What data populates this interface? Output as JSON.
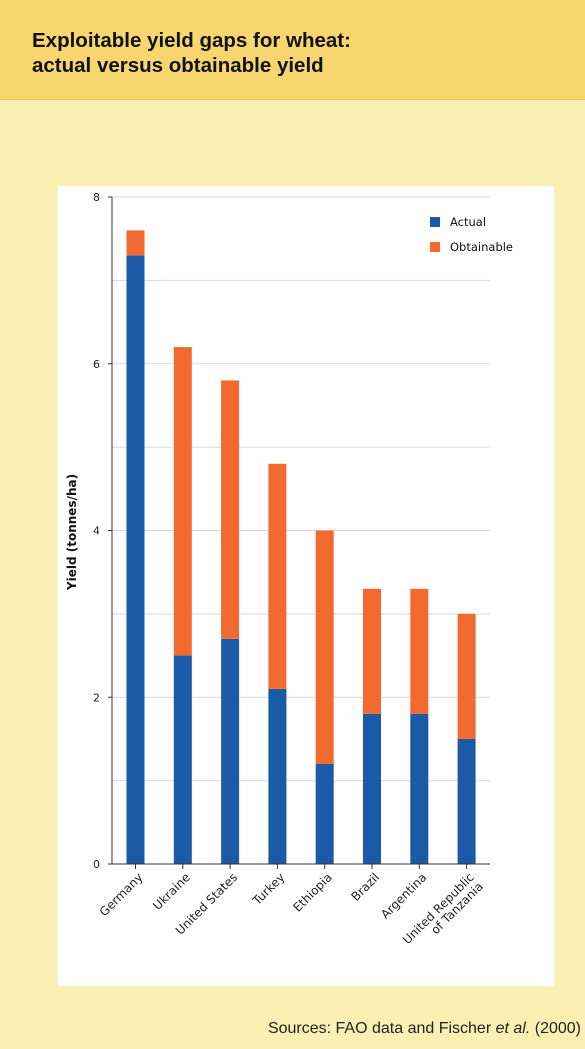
{
  "title_line1": "Exploitable yield gaps for wheat:",
  "title_line2": "actual versus obtainable yield",
  "sources": {
    "prefix": "Sources: FAO data and Fischer ",
    "etal": "et al.",
    "suffix": " (2000)"
  },
  "colors": {
    "actual": "#1b5aa6",
    "obtainable": "#f26a30",
    "grid": "#d9d9d9",
    "axis": "#333333"
  },
  "chart_data": {
    "type": "bar",
    "stacked": true,
    "title": "",
    "ylabel": "Yield (tonnes/ha)",
    "xlabel": "",
    "ylim": [
      0,
      8
    ],
    "yticks": [
      0,
      2,
      4,
      6,
      8
    ],
    "grid": true,
    "legend_position": "top-right",
    "categories": [
      "Germany",
      "Ukraine",
      "United States",
      "Turkey",
      "Ethiopia",
      "Brazil",
      "Argentina",
      [
        "United Republic",
        "of Tanzania"
      ]
    ],
    "series": [
      {
        "name": "Actual",
        "values": [
          7.3,
          2.5,
          2.7,
          2.1,
          1.2,
          1.8,
          1.8,
          1.5
        ]
      },
      {
        "name": "Obtainable",
        "values": [
          0.3,
          3.7,
          3.1,
          2.7,
          2.8,
          1.5,
          1.5,
          1.5
        ]
      }
    ],
    "obtainable_totals": [
      7.6,
      6.2,
      5.8,
      4.8,
      4.0,
      3.3,
      3.3,
      3.0
    ]
  }
}
